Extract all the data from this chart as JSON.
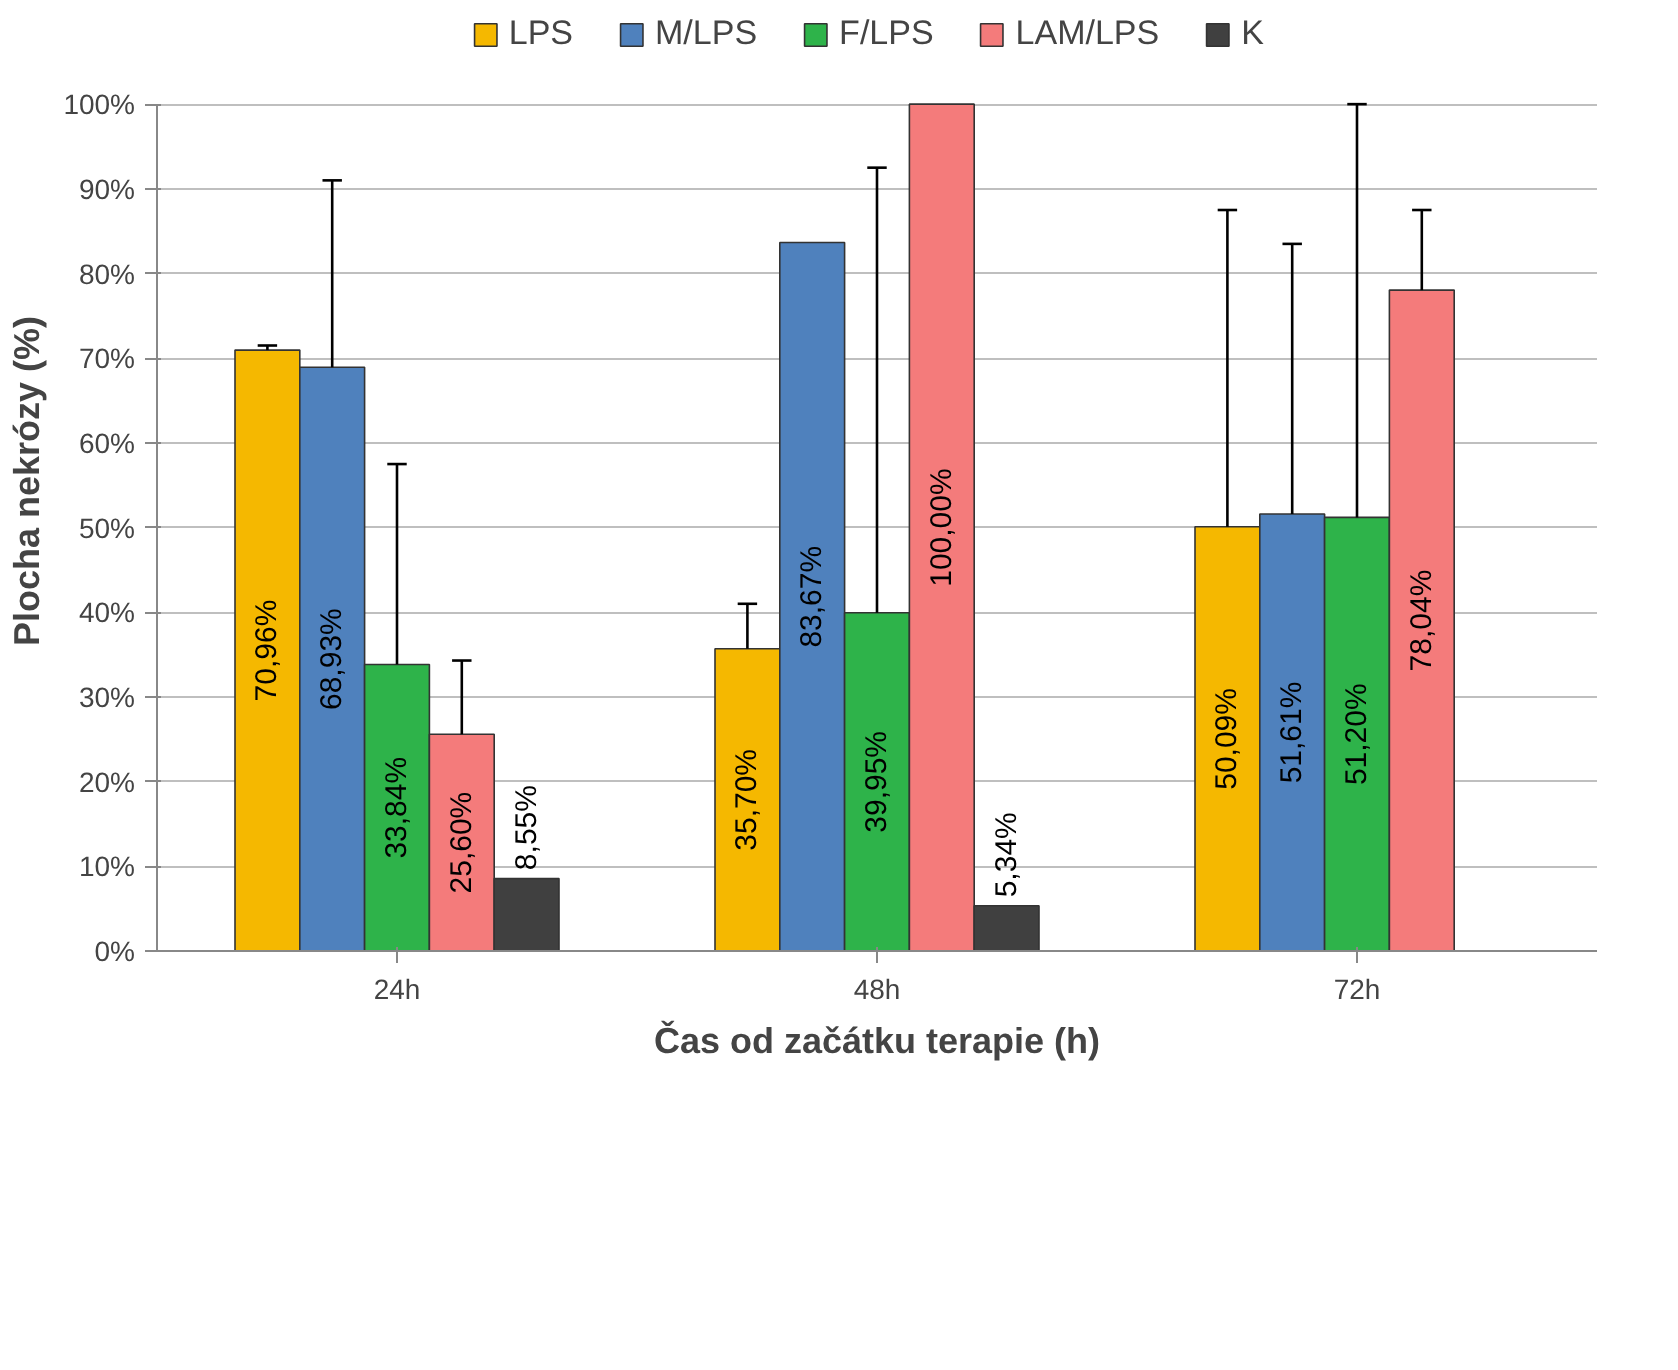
{
  "chart_data": {
    "type": "bar",
    "xlabel": "Čas od začátku terapie (h)",
    "ylabel": "Plocha nekrózy (%)",
    "categories": [
      "24h",
      "48h",
      "72h"
    ],
    "ylim": [
      0,
      100
    ],
    "yticks": [
      {
        "value": 0,
        "label": "0%"
      },
      {
        "value": 10,
        "label": "10%"
      },
      {
        "value": 20,
        "label": "20%"
      },
      {
        "value": 30,
        "label": "30%"
      },
      {
        "value": 40,
        "label": "40%"
      },
      {
        "value": 50,
        "label": "50%"
      },
      {
        "value": 60,
        "label": "60%"
      },
      {
        "value": 70,
        "label": "70%"
      },
      {
        "value": 80,
        "label": "80%"
      },
      {
        "value": 90,
        "label": "90%"
      },
      {
        "value": 100,
        "label": "100%"
      }
    ],
    "grid": "y",
    "legend": "top",
    "series": [
      {
        "name": "LPS",
        "color": "#f5b800",
        "values": [
          70.96,
          35.7,
          50.09
        ],
        "value_labels": [
          "70,96%",
          "35,70%",
          "50,09%"
        ],
        "errors": [
          [
            70.96,
            71.5
          ],
          [
            35.7,
            41
          ],
          [
            50.09,
            87.5
          ]
        ]
      },
      {
        "name": "M/LPS",
        "color": "#4f81bd",
        "values": [
          68.93,
          83.67,
          51.61
        ],
        "value_labels": [
          "68,93%",
          "83,67%",
          "51,61%"
        ],
        "errors": [
          [
            68.93,
            91
          ],
          null,
          [
            51.61,
            83.5
          ]
        ]
      },
      {
        "name": "F/LPS",
        "color": "#2eb34a",
        "values": [
          33.84,
          39.95,
          51.2
        ],
        "value_labels": [
          "33,84%",
          "39,95%",
          "51,20%"
        ],
        "errors": [
          [
            33.84,
            57.5
          ],
          [
            39.95,
            92.5
          ],
          [
            51.2,
            100
          ]
        ]
      },
      {
        "name": "LAM/LPS",
        "color": "#f47b7b",
        "values": [
          25.6,
          100,
          78.04
        ],
        "value_labels": [
          "25,60%",
          "100,00%",
          "78,04%"
        ],
        "errors": [
          [
            25.6,
            34.3
          ],
          null,
          [
            78.04,
            87.5
          ]
        ]
      },
      {
        "name": "K",
        "color": "#404040",
        "values": [
          8.55,
          5.34,
          null
        ],
        "value_labels": [
          "8,55%",
          "5,34%",
          null
        ],
        "errors": [
          null,
          null,
          null
        ]
      }
    ]
  }
}
